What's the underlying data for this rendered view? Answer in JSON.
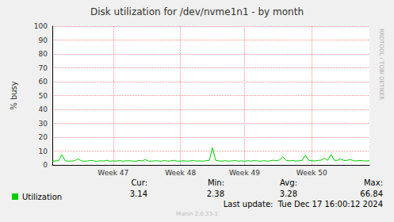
{
  "chart_data": {
    "type": "line",
    "title": "Disk utilization for /dev/nvme1n1 - by month",
    "y_label": "% busy",
    "categories": [
      null,
      null,
      null,
      null,
      null,
      null,
      null,
      null,
      null,
      null,
      null,
      null,
      null,
      null,
      null,
      null,
      null,
      null,
      null,
      "Week 47",
      null,
      null,
      null,
      null,
      null,
      null,
      null,
      null,
      null,
      null,
      null,
      null,
      null,
      null,
      null,
      null,
      null,
      null,
      null,
      null,
      "Week 48",
      null,
      null,
      null,
      null,
      null,
      null,
      null,
      null,
      null,
      null,
      null,
      null,
      null,
      null,
      null,
      null,
      null,
      null,
      null,
      "Week 49",
      null,
      null,
      null,
      null,
      null,
      null,
      null,
      null,
      null,
      null,
      null,
      null,
      null,
      null,
      null,
      null,
      null,
      null,
      null,
      null,
      "Week 50",
      null,
      null,
      null,
      null,
      null,
      null,
      null,
      null,
      null,
      null,
      null,
      null,
      null,
      null,
      null,
      null,
      null,
      null
    ],
    "series": [
      {
        "name": "Utilization",
        "color": "#00cc00",
        "values": [
          2.6,
          2.9,
          3.1,
          7.4,
          3.0,
          2.7,
          2.8,
          3.0,
          4.4,
          2.9,
          2.7,
          2.8,
          3.2,
          2.9,
          2.6,
          3.0,
          2.8,
          3.3,
          2.7,
          2.9,
          2.8,
          3.1,
          2.7,
          2.9,
          3.0,
          2.8,
          2.6,
          3.2,
          2.9,
          3.8,
          2.8,
          2.7,
          3.0,
          2.9,
          2.7,
          3.1,
          2.8,
          2.9,
          3.3,
          2.7,
          2.8,
          3.0,
          2.7,
          2.9,
          3.1,
          2.8,
          2.9,
          2.7,
          3.0,
          3.2,
          12.4,
          3.3,
          2.9,
          2.8,
          3.0,
          2.7,
          2.9,
          3.1,
          2.8,
          2.9,
          2.7,
          3.0,
          2.8,
          3.1,
          2.9,
          2.7,
          3.0,
          2.8,
          2.9,
          3.4,
          3.0,
          3.6,
          5.9,
          3.2,
          2.9,
          3.1,
          2.8,
          3.0,
          3.3,
          7.0,
          3.4,
          3.0,
          2.9,
          3.2,
          3.5,
          4.8,
          3.3,
          7.6,
          3.4,
          3.2,
          4.4,
          3.1,
          3.3,
          3.9,
          3.0,
          2.9,
          3.2,
          3.0,
          2.8,
          3.1
        ]
      }
    ],
    "ylim": [
      0,
      100
    ],
    "yticks": [
      0,
      10,
      20,
      30,
      40,
      50,
      60,
      70,
      80,
      90,
      100
    ],
    "grid": true,
    "legend": "bottom-left",
    "summary": {
      "columns": [
        "Cur:",
        "Min:",
        "Avg:",
        "Max:"
      ],
      "values": [
        3.14,
        2.38,
        3.28,
        66.84
      ]
    },
    "annotations": [
      "Last update:  Tue Dec 17 16:00:12 2024",
      "Munin 2.0.33-1"
    ],
    "side_text": "RRDTOOL / TOBI OETIKER"
  }
}
